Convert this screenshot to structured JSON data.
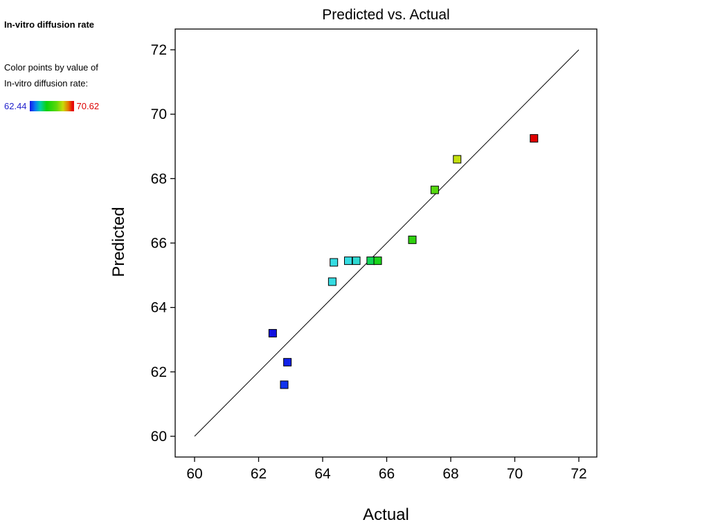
{
  "legend": {
    "title": "In-vitro diffusion rate",
    "subtitle_line1": "Color points by value of",
    "subtitle_line2": "In-vitro diffusion rate:",
    "min_value": "62.44",
    "max_value": "70.62",
    "min_color": "#2222CC",
    "max_color": "#DD0000",
    "gradient_stops": [
      "#1616E8 0%",
      "#0A78F5 12%",
      "#00CFA6 24%",
      "#0AD20A 38%",
      "#5AD80A 60%",
      "#C8DC0A 75%",
      "#E67800 87%",
      "#E60A0A 96%",
      "#E60A0A 100%"
    ]
  },
  "chart_data": {
    "type": "scatter",
    "title": "Predicted vs. Actual",
    "xlabel": "Actual",
    "ylabel": "Predicted",
    "xlim": [
      60,
      72
    ],
    "ylim": [
      60,
      72
    ],
    "x_ticks": [
      60,
      62,
      64,
      66,
      68,
      70,
      72
    ],
    "y_ticks": [
      60,
      62,
      64,
      66,
      68,
      70,
      72
    ],
    "color_by": "In-vitro diffusion rate",
    "color_range": [
      62.44,
      70.62
    ],
    "identity_line": {
      "x1": 60,
      "y1": 60,
      "x2": 72,
      "y2": 72
    },
    "points": [
      {
        "x": 62.44,
        "y": 63.2,
        "color": "#1111E0"
      },
      {
        "x": 62.9,
        "y": 62.3,
        "color": "#1122E8"
      },
      {
        "x": 62.8,
        "y": 61.6,
        "color": "#1133EE"
      },
      {
        "x": 64.3,
        "y": 64.8,
        "color": "#35DCE2"
      },
      {
        "x": 64.35,
        "y": 65.4,
        "color": "#35DCE2"
      },
      {
        "x": 64.8,
        "y": 65.45,
        "color": "#35DCE2"
      },
      {
        "x": 65.05,
        "y": 65.45,
        "color": "#2FD9D2"
      },
      {
        "x": 65.5,
        "y": 65.45,
        "color": "#12D556"
      },
      {
        "x": 65.72,
        "y": 65.45,
        "color": "#1BD51B"
      },
      {
        "x": 66.8,
        "y": 66.1,
        "color": "#2FD10F"
      },
      {
        "x": 67.5,
        "y": 67.65,
        "color": "#55D90F"
      },
      {
        "x": 68.2,
        "y": 68.6,
        "color": "#C4E00F"
      },
      {
        "x": 70.6,
        "y": 69.25,
        "color": "#E00000"
      }
    ]
  }
}
